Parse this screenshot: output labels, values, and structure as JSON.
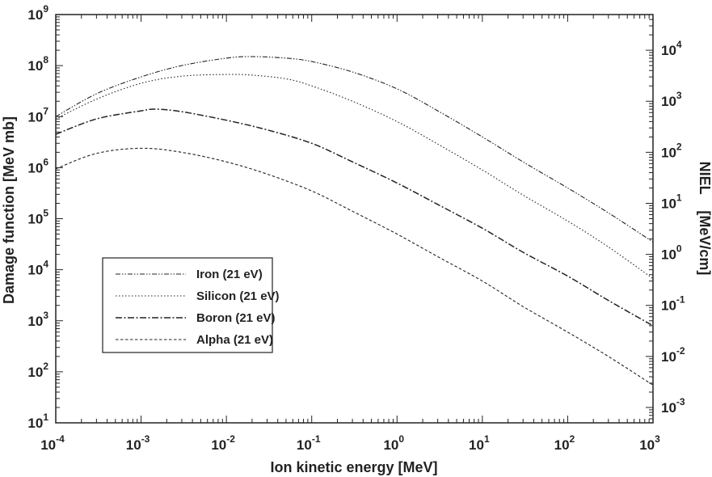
{
  "chart_data": {
    "type": "line",
    "xlabel": "Ion kinetic energy  [MeV]",
    "ylabel": "Damage function [MeV mb]",
    "y2label": "NIEL    [MeV/cm]",
    "xscale": "log",
    "yscale": "log",
    "y2scale": "log",
    "xlim": [
      0.0001,
      1000
    ],
    "ylim": [
      10,
      1000000000
    ],
    "y2lim": [
      0.0005,
      50000
    ],
    "x_ticks": [
      {
        "base": "10",
        "exp": "-4"
      },
      {
        "base": "10",
        "exp": "-3"
      },
      {
        "base": "10",
        "exp": "-2"
      },
      {
        "base": "10",
        "exp": "-1"
      },
      {
        "base": "10",
        "exp": "0"
      },
      {
        "base": "10",
        "exp": "1"
      },
      {
        "base": "10",
        "exp": "2"
      },
      {
        "base": "10",
        "exp": "3"
      }
    ],
    "y_ticks": [
      {
        "base": "10",
        "exp": "1"
      },
      {
        "base": "10",
        "exp": "2"
      },
      {
        "base": "10",
        "exp": "3"
      },
      {
        "base": "10",
        "exp": "4"
      },
      {
        "base": "10",
        "exp": "5"
      },
      {
        "base": "10",
        "exp": "6"
      },
      {
        "base": "10",
        "exp": "7"
      },
      {
        "base": "10",
        "exp": "8"
      },
      {
        "base": "10",
        "exp": "9"
      }
    ],
    "y2_ticks": [
      {
        "base": "10",
        "exp": "-3"
      },
      {
        "base": "10",
        "exp": "-2"
      },
      {
        "base": "10",
        "exp": "-1"
      },
      {
        "base": "10",
        "exp": "0"
      },
      {
        "base": "10",
        "exp": "1"
      },
      {
        "base": "10",
        "exp": "2"
      },
      {
        "base": "10",
        "exp": "3"
      },
      {
        "base": "10",
        "exp": "4"
      }
    ],
    "grid": false,
    "legend_position": "lower-left",
    "series": [
      {
        "name": "Iron (21 eV)",
        "dash": "6,2,1.5,2,1.5,2",
        "stroke_width": 1.1,
        "x": [
          0.0001,
          0.0003,
          0.001,
          0.003,
          0.01,
          0.02,
          0.05,
          0.1,
          0.3,
          1,
          3,
          10,
          30,
          100,
          300,
          1000
        ],
        "y": [
          10000000,
          28000000,
          60000000,
          100000000,
          140000000,
          150000000,
          140000000,
          120000000,
          75000000,
          35000000,
          13000000,
          4000000,
          1300000,
          400000,
          130000,
          35000
        ]
      },
      {
        "name": "Silicon (21 eV)",
        "dash": "1.5,2.5",
        "stroke_width": 1.1,
        "x": [
          0.0001,
          0.0003,
          0.001,
          0.003,
          0.01,
          0.02,
          0.05,
          0.1,
          0.3,
          1,
          3,
          10,
          30,
          100,
          300,
          1000
        ],
        "y": [
          9000000,
          22000000,
          45000000,
          62000000,
          67000000,
          65000000,
          55000000,
          40000000,
          20000000,
          8000000,
          2900000,
          900000,
          290000,
          90000,
          28000,
          6700
        ]
      },
      {
        "name": "Boron (21 eV)",
        "dash": "8,2.5,2,2.5",
        "stroke_width": 1.5,
        "x": [
          0.0001,
          0.0003,
          0.001,
          0.0015,
          0.003,
          0.01,
          0.03,
          0.1,
          0.3,
          1,
          3,
          10,
          30,
          100,
          300,
          1000
        ],
        "y": [
          4500000,
          9000000,
          13000000,
          14000000,
          12500000,
          8500000,
          5500000,
          3000000,
          1300000,
          500000,
          190000,
          65000,
          22000,
          7500,
          2500,
          800
        ]
      },
      {
        "name": "Alpha (21 eV)",
        "dash": "3.5,2.5",
        "stroke_width": 1.1,
        "x": [
          0.0001,
          0.0003,
          0.001,
          0.003,
          0.01,
          0.03,
          0.1,
          0.3,
          1,
          3,
          10,
          30,
          100,
          300,
          1000
        ],
        "y": [
          950000,
          1900000,
          2400000,
          2000000,
          1300000,
          750000,
          350000,
          140000,
          50000,
          18000,
          6000,
          1900,
          600,
          200,
          55
        ]
      }
    ]
  }
}
